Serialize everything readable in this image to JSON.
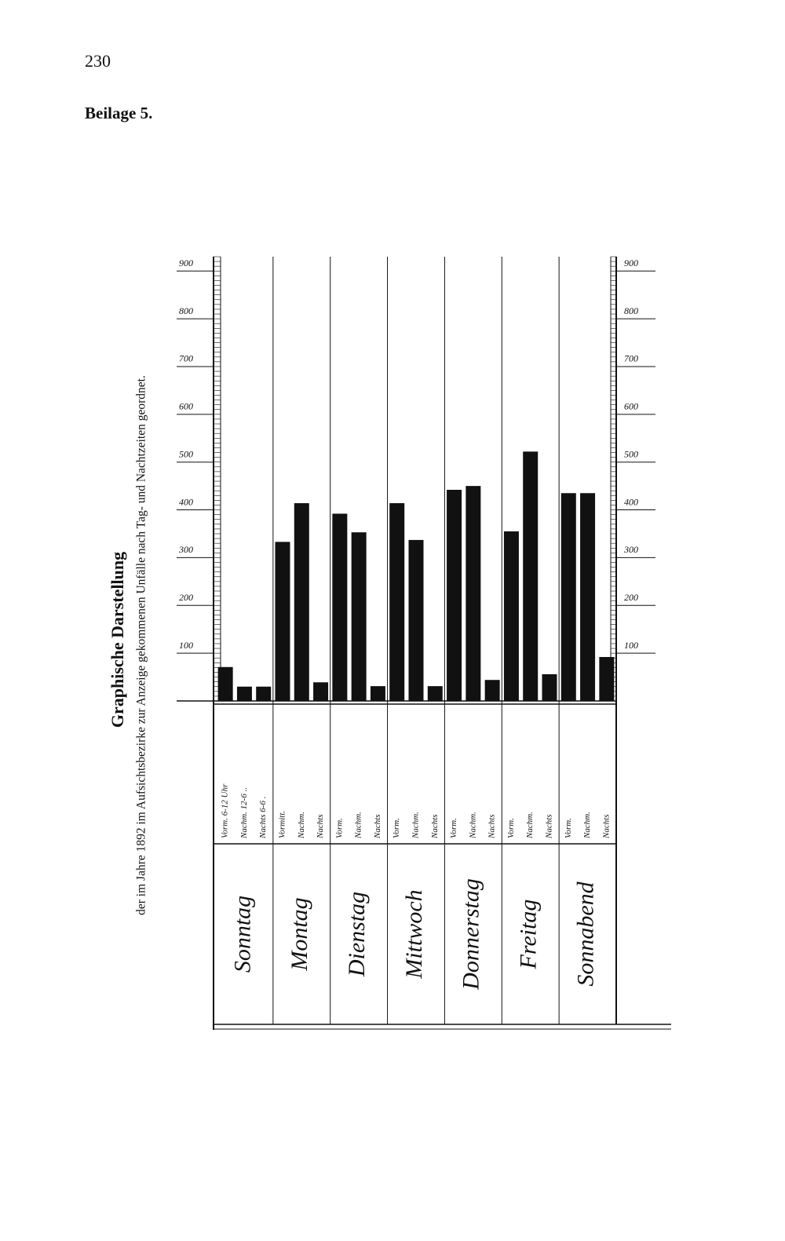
{
  "page_number": "230",
  "heading": "Beilage 5.",
  "chart_data": {
    "type": "bar",
    "title": "Graphische Darstellung",
    "subtitle": "der im Jahre 1892 im Aufsichtsbezirke zur Anzeige gekommenen Unfälle nach Tag- und Nachtzeiten geordnet.",
    "groups": [
      "Sonntag",
      "Montag",
      "Dienstag",
      "Mittwoch",
      "Donnerstag",
      "Freitag",
      "Sonnabend"
    ],
    "categories": [
      "Vorm. 6-12 Uhr",
      "Nachm. 12-6 ..",
      "Nachts 6-6 .",
      "Vormitt.",
      "Nachm.",
      "Nachts",
      "Vorm.",
      "Nachm.",
      "Nachts",
      "Vorm.",
      "Nachm.",
      "Nachts",
      "Vorm.",
      "Nachm.",
      "Nachts",
      "Vorm.",
      "Nachm.",
      "Nachts",
      "Vorm.",
      "Nachm.",
      "Nachts"
    ],
    "values": [
      71,
      30,
      30,
      333,
      414,
      39,
      392,
      353,
      31,
      414,
      337,
      31,
      442,
      450,
      44,
      355,
      522,
      56,
      435,
      435,
      92
    ],
    "color": "#111111",
    "ylim": [
      0,
      930
    ],
    "yticks": [
      100,
      200,
      300,
      400,
      500,
      600,
      700,
      800,
      900
    ]
  }
}
